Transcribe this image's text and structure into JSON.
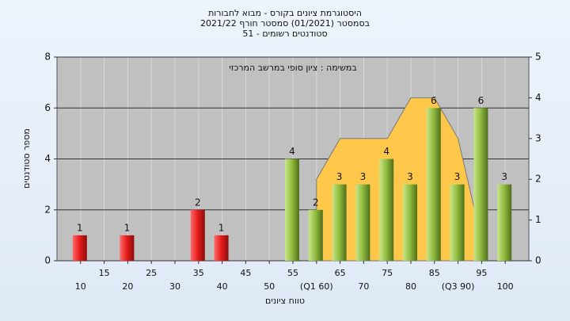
{
  "chart_data": {
    "type": "bar",
    "title": "היסטוגרמת ציונים בקורס - מבוא לחבורות",
    "subtitle": [
      "בסמסטר  (01/2021)  סמסטר חורף 2021/22",
      "סטודנטים רשומים - 51"
    ],
    "annotation": "במשימה : ציון סופי במרשב המרכזי",
    "x_label": "טווח ציונים",
    "y_label": "מספר סטודנטים",
    "categories": [
      "10",
      "15",
      "20",
      "25",
      "30",
      "35",
      "40",
      "45",
      "50",
      "55",
      "(Q1 60)",
      "65",
      "70",
      "75",
      "80",
      "85",
      "(Q3 90)",
      "95",
      "100"
    ],
    "values": [
      1,
      0,
      1,
      0,
      0,
      2,
      1,
      0,
      0,
      4,
      2,
      3,
      3,
      4,
      3,
      6,
      3,
      6,
      3
    ],
    "colors": [
      "red",
      "red",
      "red",
      "red",
      "red",
      "red",
      "red",
      "red",
      "red",
      "green",
      "green",
      "green",
      "green",
      "green",
      "green",
      "green",
      "green",
      "green",
      "green"
    ],
    "area": {
      "axis": "y2",
      "color": "#ffc84a",
      "values": [
        null,
        null,
        null,
        null,
        null,
        null,
        null,
        null,
        null,
        null,
        2,
        3,
        3,
        3,
        4,
        4,
        3,
        0.5,
        null
      ]
    },
    "ylim": [
      0,
      8
    ],
    "yticks": [
      0,
      2,
      4,
      6,
      8
    ],
    "y2lim": [
      0,
      5
    ],
    "y2ticks": [
      0,
      1,
      2,
      3,
      4,
      5
    ],
    "grid": true
  }
}
